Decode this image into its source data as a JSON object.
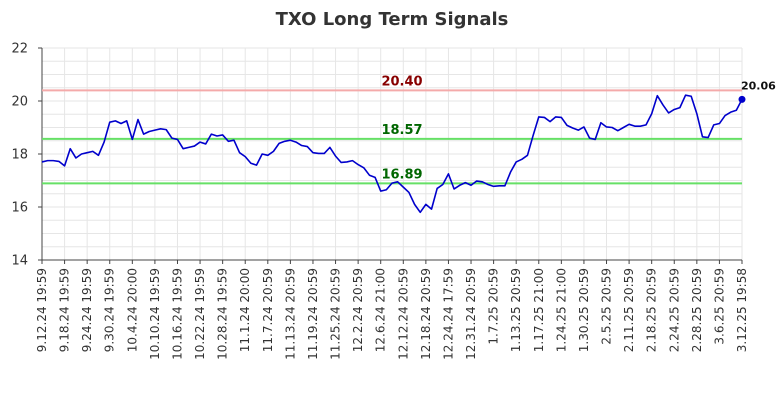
{
  "chart_data": {
    "type": "line",
    "title": "TXO Long Term Signals",
    "xlabel": "",
    "ylabel": "",
    "ylim": [
      14,
      22
    ],
    "yticks": [
      "14",
      "16",
      "18",
      "20",
      "22"
    ],
    "grid": true,
    "xtick_labels": [
      "9.12.24 19:59",
      "9.18.24 19:59",
      "9.24.24 19:59",
      "9.30.24 19:59",
      "10.4.24 20:00",
      "10.10.24 19:59",
      "10.16.24 19:59",
      "10.22.24 19:59",
      "10.28.24 19:59",
      "11.1.24 20:00",
      "11.7.24 20:59",
      "11.13.24 20:59",
      "11.19.24 20:59",
      "11.25.24 20:59",
      "12.2.24 20:59",
      "12.6.24 21:00",
      "12.12.24 20:59",
      "12.18.24 20:59",
      "12.24.24 17:59",
      "12.31.24 20:59",
      "1.7.25 20:59",
      "1.13.25 20:59",
      "1.17.25 21:00",
      "1.24.25 21:00",
      "1.30.25 20:59",
      "2.5.25 20:59",
      "2.11.25 20:59",
      "2.18.25 20:59",
      "2.24.25 20:59",
      "2.28.25 20:59",
      "3.6.25 20:59",
      "3.12.25 19:58"
    ],
    "series": [
      {
        "values": [
          17.7,
          17.75,
          17.75,
          17.72,
          17.55,
          18.2,
          17.85,
          18.0,
          18.05,
          18.1,
          17.95,
          18.45,
          19.2,
          19.25,
          19.15,
          19.25,
          18.55,
          19.3,
          18.75,
          18.85,
          18.9,
          18.95,
          18.92,
          18.6,
          18.55,
          18.2,
          18.25,
          18.3,
          18.45,
          18.38,
          18.75,
          18.68,
          18.72,
          18.48,
          18.52,
          18.05,
          17.9,
          17.65,
          17.58,
          18.0,
          17.95,
          18.1,
          18.4,
          18.48,
          18.52,
          18.45,
          18.32,
          18.28,
          18.05,
          18.02,
          18.02,
          18.25,
          17.92,
          17.68,
          17.7,
          17.75,
          17.6,
          17.48,
          17.2,
          17.12,
          16.6,
          16.65,
          16.9,
          16.95,
          16.75,
          16.55,
          16.1,
          15.8,
          16.1,
          15.92,
          16.7,
          16.85,
          17.25,
          16.68,
          16.82,
          16.92,
          16.82,
          16.98,
          16.95,
          16.85,
          16.78,
          16.8,
          16.8,
          17.32,
          17.7,
          17.8,
          17.95,
          18.7,
          19.4,
          19.38,
          19.22,
          19.4,
          19.38,
          19.08,
          18.98,
          18.9,
          19.02,
          18.6,
          18.55,
          19.18,
          19.02,
          19.0,
          18.88,
          19.0,
          19.12,
          19.05,
          19.05,
          19.1,
          19.52,
          20.2,
          19.85,
          19.55,
          19.68,
          19.75,
          20.22,
          20.18,
          19.52,
          18.65,
          18.62,
          19.1,
          19.15,
          19.45,
          19.58,
          19.65,
          20.06
        ]
      }
    ],
    "reference_lines": [
      {
        "value": 20.4,
        "label": "20.40",
        "color": "#f4aaaa",
        "label_color": "#880000"
      },
      {
        "value": 18.57,
        "label": "18.57",
        "color": "#66e066",
        "label_color": "#006600"
      },
      {
        "value": 16.89,
        "label": "16.89",
        "color": "#66e066",
        "label_color": "#006600"
      }
    ],
    "last_value_label": "20.06",
    "line_color": "#0000cc"
  }
}
